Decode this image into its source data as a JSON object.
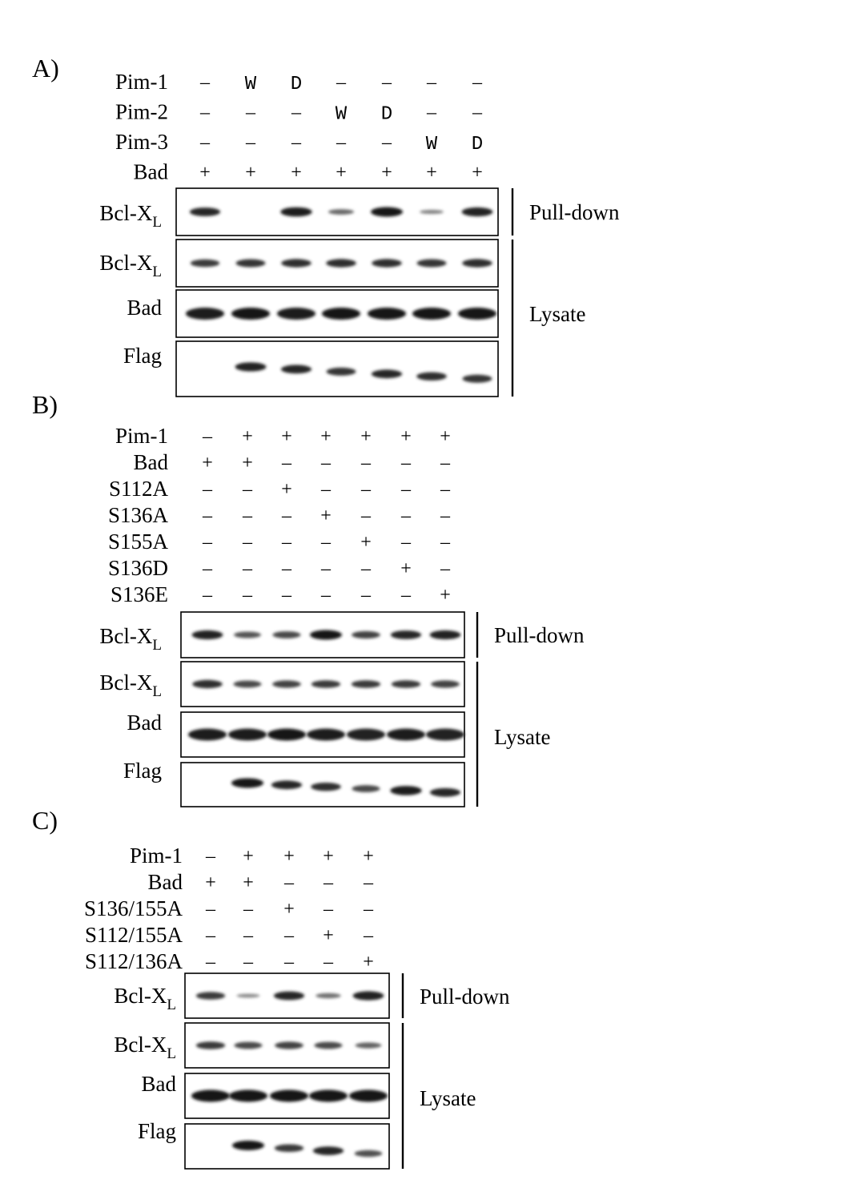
{
  "panels": [
    {
      "letter": "A)",
      "conditions": [
        {
          "label": "Pim-1",
          "values": [
            "–",
            "W",
            "D",
            "–",
            "–",
            "–",
            "–"
          ]
        },
        {
          "label": "Pim-2",
          "values": [
            "–",
            "–",
            "–",
            "W",
            "D",
            "–",
            "–"
          ]
        },
        {
          "label": "Pim-3",
          "values": [
            "–",
            "–",
            "–",
            "–",
            "–",
            "W",
            "D"
          ]
        },
        {
          "label": "Bad",
          "values": [
            "+",
            "+",
            "+",
            "+",
            "+",
            "+",
            "+"
          ]
        }
      ],
      "blots": [
        {
          "label": "Bcl-X",
          "sub": "L",
          "intensity": [
            0.85,
            0.0,
            0.95,
            0.35,
            1.0,
            0.15,
            0.9
          ]
        },
        {
          "label": "Bcl-X",
          "sub": "L",
          "intensity": [
            0.7,
            0.75,
            0.8,
            0.8,
            0.8,
            0.75,
            0.8
          ]
        },
        {
          "label": "Bad",
          "sub": "",
          "intensity": [
            0.95,
            1.0,
            0.95,
            1.0,
            1.0,
            1.0,
            1.0
          ]
        },
        {
          "label": "Flag",
          "sub": "",
          "intensity": [
            0.0,
            0.9,
            0.85,
            0.75,
            0.85,
            0.8,
            0.75
          ]
        }
      ],
      "groups": [
        {
          "label": "Pull-down",
          "first": 0,
          "last": 0
        },
        {
          "label": "Lysate",
          "first": 1,
          "last": 3
        }
      ]
    },
    {
      "letter": "B)",
      "conditions": [
        {
          "label": "Pim-1",
          "values": [
            "–",
            "+",
            "+",
            "+",
            "+",
            "+",
            "+"
          ]
        },
        {
          "label": "Bad",
          "values": [
            "+",
            "+",
            "–",
            "–",
            "–",
            "–",
            "–"
          ]
        },
        {
          "label": "S112A",
          "values": [
            "–",
            "–",
            "+",
            "–",
            "–",
            "–",
            "–"
          ]
        },
        {
          "label": "S136A",
          "values": [
            "–",
            "–",
            "–",
            "+",
            "–",
            "–",
            "–"
          ]
        },
        {
          "label": "S155A",
          "values": [
            "–",
            "–",
            "–",
            "–",
            "+",
            "–",
            "–"
          ]
        },
        {
          "label": "S136D",
          "values": [
            "–",
            "–",
            "–",
            "–",
            "–",
            "+",
            "–"
          ]
        },
        {
          "label": "S136E",
          "values": [
            "–",
            "–",
            "–",
            "–",
            "–",
            "–",
            "+"
          ]
        }
      ],
      "blots": [
        {
          "label": "Bcl-X",
          "sub": "L",
          "intensity": [
            0.9,
            0.5,
            0.6,
            1.0,
            0.65,
            0.85,
            0.9
          ]
        },
        {
          "label": "Bcl-X",
          "sub": "L",
          "intensity": [
            0.8,
            0.6,
            0.65,
            0.7,
            0.7,
            0.7,
            0.65
          ]
        },
        {
          "label": "Bad",
          "sub": "",
          "intensity": [
            0.95,
            0.95,
            1.0,
            0.95,
            0.9,
            0.95,
            0.9
          ]
        },
        {
          "label": "Flag",
          "sub": "",
          "intensity": [
            0.0,
            1.0,
            0.85,
            0.8,
            0.6,
            0.95,
            0.85
          ]
        }
      ],
      "groups": [
        {
          "label": "Pull-down",
          "first": 0,
          "last": 0
        },
        {
          "label": "Lysate",
          "first": 1,
          "last": 3
        }
      ]
    },
    {
      "letter": "C)",
      "conditions": [
        {
          "label": "Pim-1",
          "values": [
            "–",
            "+",
            "+",
            "+",
            "+"
          ]
        },
        {
          "label": "Bad",
          "values": [
            "+",
            "+",
            "–",
            "–",
            "–"
          ]
        },
        {
          "label": "S136/155A",
          "values": [
            "–",
            "–",
            "+",
            "–",
            "–"
          ]
        },
        {
          "label": "S112/155A",
          "values": [
            "–",
            "–",
            "–",
            "+",
            "–"
          ]
        },
        {
          "label": "S112/136A",
          "values": [
            "–",
            "–",
            "–",
            "–",
            "+"
          ]
        }
      ],
      "blots": [
        {
          "label": "Bcl-X",
          "sub": "L",
          "intensity": [
            0.7,
            0.1,
            0.85,
            0.3,
            0.9
          ]
        },
        {
          "label": "Bcl-X",
          "sub": "L",
          "intensity": [
            0.7,
            0.6,
            0.65,
            0.6,
            0.4
          ]
        },
        {
          "label": "Bad",
          "sub": "",
          "intensity": [
            1.0,
            1.0,
            1.0,
            1.0,
            1.0
          ]
        },
        {
          "label": "Flag",
          "sub": "",
          "intensity": [
            0.0,
            1.0,
            0.7,
            0.85,
            0.55
          ]
        }
      ],
      "groups": [
        {
          "label": "Pull-down",
          "first": 0,
          "last": 0
        },
        {
          "label": "Lysate",
          "first": 1,
          "last": 3
        }
      ]
    }
  ]
}
